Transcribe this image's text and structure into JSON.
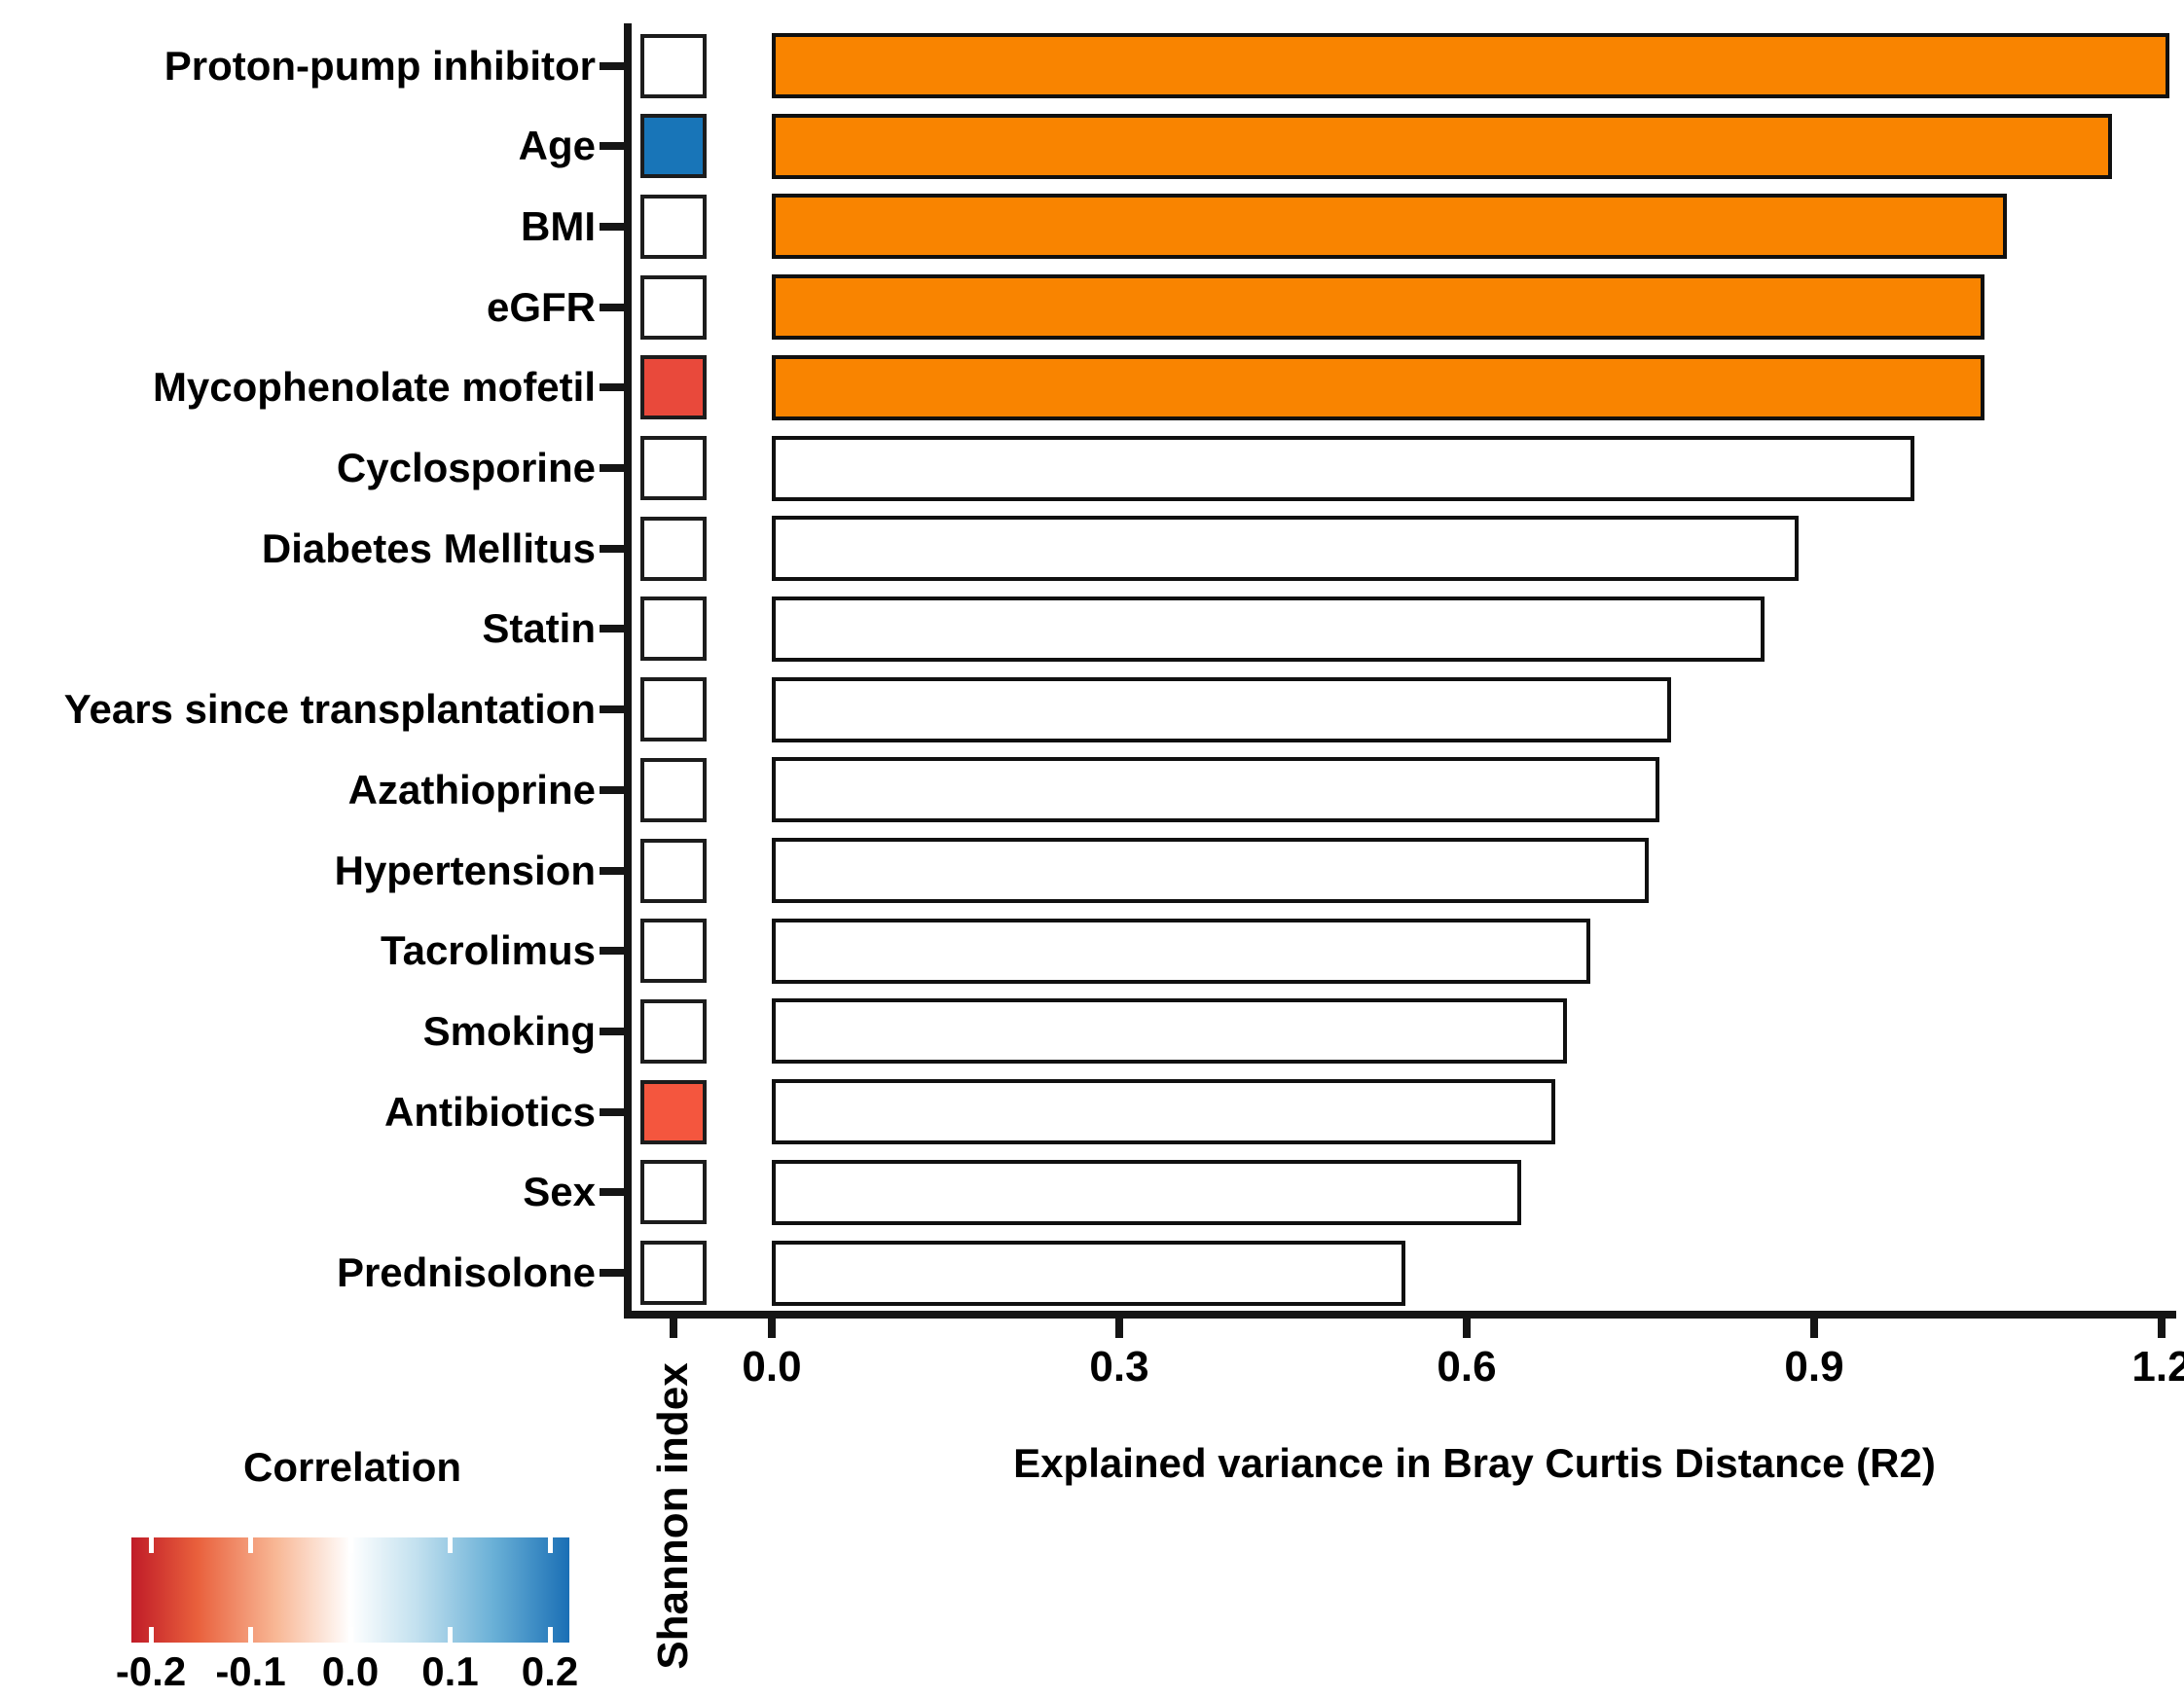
{
  "chart_data": {
    "type": "bar",
    "orientation": "horizontal",
    "title": "",
    "xlabel": "Explained variance in Bray Curtis Distance (R2)",
    "column_header": "Shannon index",
    "xlim": [
      0.0,
      1.2
    ],
    "x_ticks": [
      "0.0",
      "0.3",
      "0.6",
      "0.9",
      "1.2"
    ],
    "grid": false,
    "rows": [
      {
        "label": "Proton-pump inhibitor",
        "r2": 1.2,
        "bar_color_key": "orange",
        "shannon_square_key": "white"
      },
      {
        "label": "Age",
        "r2": 1.15,
        "bar_color_key": "orange",
        "shannon_square_key": "blue"
      },
      {
        "label": "BMI",
        "r2": 1.06,
        "bar_color_key": "orange",
        "shannon_square_key": "white"
      },
      {
        "label": "eGFR",
        "r2": 1.04,
        "bar_color_key": "orange",
        "shannon_square_key": "white"
      },
      {
        "label": "Mycophenolate mofetil",
        "r2": 1.04,
        "bar_color_key": "orange",
        "shannon_square_key": "red"
      },
      {
        "label": "Cyclosporine",
        "r2": 0.98,
        "bar_color_key": "white",
        "shannon_square_key": "white"
      },
      {
        "label": "Diabetes Mellitus",
        "r2": 0.88,
        "bar_color_key": "white",
        "shannon_square_key": "white"
      },
      {
        "label": "Statin",
        "r2": 0.85,
        "bar_color_key": "white",
        "shannon_square_key": "white"
      },
      {
        "label": "Years since transplantation",
        "r2": 0.77,
        "bar_color_key": "white",
        "shannon_square_key": "white"
      },
      {
        "label": "Azathioprine",
        "r2": 0.76,
        "bar_color_key": "white",
        "shannon_square_key": "white"
      },
      {
        "label": "Hypertension",
        "r2": 0.75,
        "bar_color_key": "white",
        "shannon_square_key": "white"
      },
      {
        "label": "Tacrolimus",
        "r2": 0.7,
        "bar_color_key": "white",
        "shannon_square_key": "white"
      },
      {
        "label": "Smoking",
        "r2": 0.68,
        "bar_color_key": "white",
        "shannon_square_key": "white"
      },
      {
        "label": "Antibiotics",
        "r2": 0.67,
        "bar_color_key": "white",
        "shannon_square_key": "red-orange"
      },
      {
        "label": "Sex",
        "r2": 0.64,
        "bar_color_key": "white",
        "shannon_square_key": "white"
      },
      {
        "label": "Prednisolone",
        "r2": 0.54,
        "bar_color_key": "white",
        "shannon_square_key": "white"
      }
    ],
    "legend": {
      "title": "Correlation",
      "ticks": [
        "-0.2",
        "-0.1",
        "0.0",
        "0.1",
        "0.2"
      ],
      "range": [
        -0.2,
        0.2
      ],
      "gradient_stops": [
        {
          "color": "#c01b28",
          "pos": 0
        },
        {
          "color": "#e9603c",
          "pos": 15
        },
        {
          "color": "#f8b795",
          "pos": 33
        },
        {
          "color": "#ffffff",
          "pos": 50
        },
        {
          "color": "#c3e1ef",
          "pos": 65
        },
        {
          "color": "#68afd6",
          "pos": 83
        },
        {
          "color": "#1a6fb5",
          "pos": 100
        }
      ]
    },
    "colors": {
      "orange": "#f98400",
      "white": "#ffffff",
      "blue": "#1875b8",
      "red": "#e9493b",
      "red-orange": "#f4563e",
      "outline": "#101010",
      "axis": "#151515"
    }
  }
}
